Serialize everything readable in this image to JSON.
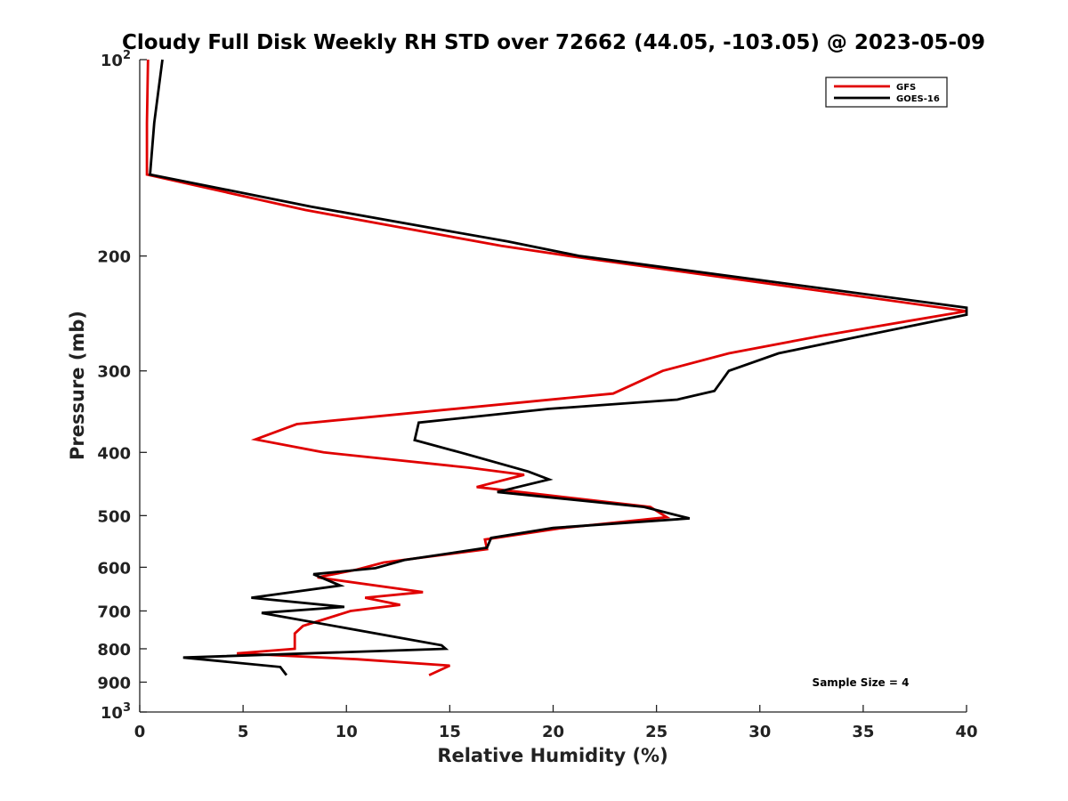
{
  "chart_data": {
    "type": "line",
    "title": "Cloudy Full Disk Weekly RH STD over 72662 (44.05, -103.05) @ 2023-05-09",
    "xlabel": "Relative Humidity (%)",
    "ylabel": "Pressure (mb)",
    "xlim": [
      0,
      40
    ],
    "ylim": [
      100,
      1000
    ],
    "y_scale": "log",
    "y_reversed": true,
    "x_ticks": [
      "0",
      "5",
      "10",
      "15",
      "20",
      "25",
      "30",
      "35",
      "40"
    ],
    "y_ticks": [
      {
        "value": 100,
        "base": "10",
        "exp": "2"
      },
      {
        "value": 200,
        "label": "200"
      },
      {
        "value": 300,
        "label": "300"
      },
      {
        "value": 400,
        "label": "400"
      },
      {
        "value": 500,
        "label": "500"
      },
      {
        "value": 600,
        "label": "600"
      },
      {
        "value": 700,
        "label": "700"
      },
      {
        "value": 800,
        "label": "800"
      },
      {
        "value": 900,
        "label": "900"
      },
      {
        "value": 1000,
        "base": "10",
        "exp": "3"
      }
    ],
    "legend_position": "top-right",
    "annotation": "Sample Size = 4",
    "series": [
      {
        "name": "GFS",
        "color": "#e00000",
        "points": [
          [
            0.4,
            100
          ],
          [
            0.35,
            125
          ],
          [
            0.35,
            150
          ],
          [
            8,
            170
          ],
          [
            17.5,
            193
          ],
          [
            20.8,
            200
          ],
          [
            40,
            243
          ],
          [
            33,
            265
          ],
          [
            28.5,
            282
          ],
          [
            25.3,
            300
          ],
          [
            22.9,
            325
          ],
          [
            7.6,
            362
          ],
          [
            5.6,
            382
          ],
          [
            8.9,
            400
          ],
          [
            15.9,
            422
          ],
          [
            18.6,
            433
          ],
          [
            16.3,
            452
          ],
          [
            24.7,
            485
          ],
          [
            25.5,
            503
          ],
          [
            20.3,
            523
          ],
          [
            16.7,
            544
          ],
          [
            16.8,
            563
          ],
          [
            11.8,
            590
          ],
          [
            10.5,
            605
          ],
          [
            8.6,
            622
          ],
          [
            13.7,
            655
          ],
          [
            10.9,
            668
          ],
          [
            12.6,
            685
          ],
          [
            10.2,
            700
          ],
          [
            7.9,
            738
          ],
          [
            7.5,
            758
          ],
          [
            7.5,
            800
          ],
          [
            4.7,
            813
          ],
          [
            10.5,
            830
          ],
          [
            15,
            849
          ],
          [
            14,
            878
          ]
        ]
      },
      {
        "name": "GOES-16",
        "color": "#000000",
        "points": [
          [
            1.1,
            100
          ],
          [
            0.7,
            125
          ],
          [
            0.5,
            150
          ],
          [
            8.3,
            168
          ],
          [
            17.8,
            190
          ],
          [
            21.3,
            200
          ],
          [
            40,
            240
          ],
          [
            40,
            246
          ],
          [
            35,
            265
          ],
          [
            30.9,
            282
          ],
          [
            28.5,
            300
          ],
          [
            27.8,
            322
          ],
          [
            26,
            332
          ],
          [
            19.8,
            343
          ],
          [
            13.5,
            360
          ],
          [
            13.3,
            383
          ],
          [
            15.5,
            400
          ],
          [
            18.8,
            428
          ],
          [
            19.8,
            440
          ],
          [
            17.3,
            460
          ],
          [
            24.4,
            485
          ],
          [
            26.6,
            505
          ],
          [
            20,
            522
          ],
          [
            17,
            541
          ],
          [
            16.8,
            560
          ],
          [
            12.8,
            585
          ],
          [
            11.4,
            602
          ],
          [
            8.4,
            615
          ],
          [
            9.7,
            640
          ],
          [
            5.4,
            668
          ],
          [
            9.9,
            690
          ],
          [
            5.9,
            705
          ],
          [
            14.6,
            790
          ],
          [
            14.8,
            800
          ],
          [
            2.1,
            825
          ],
          [
            6.8,
            853
          ],
          [
            7.1,
            878
          ]
        ]
      }
    ]
  }
}
